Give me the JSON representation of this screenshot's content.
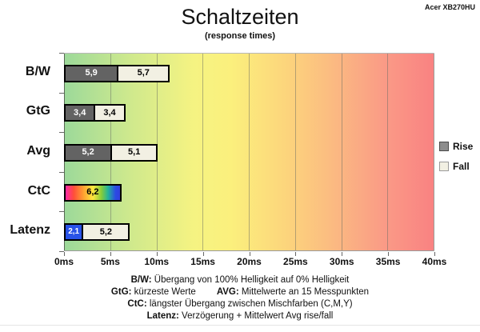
{
  "header": {
    "title": "Schaltzeiten",
    "subtitle": "(response times)",
    "device": "Acer XB270HU"
  },
  "chart_data": {
    "type": "bar",
    "orientation": "horizontal",
    "title": "Schaltzeiten",
    "subtitle": "(response times)",
    "unit": "ms",
    "xlim": [
      0,
      40
    ],
    "x_ticks": [
      "0ms",
      "5ms",
      "10ms",
      "15ms",
      "20ms",
      "25ms",
      "30ms",
      "35ms",
      "40ms"
    ],
    "grid": true,
    "legend_position": "right",
    "categories": [
      "B/W",
      "GtG",
      "Avg",
      "CtC",
      "Latenz"
    ],
    "rows": [
      {
        "label": "B/W",
        "segments": [
          {
            "label": "5,9",
            "ms": 5.9,
            "style": "rise"
          },
          {
            "label": "5,7",
            "ms": 5.7,
            "style": "fall"
          }
        ]
      },
      {
        "label": "GtG",
        "segments": [
          {
            "label": "3,4",
            "ms": 3.4,
            "style": "rise"
          },
          {
            "label": "3,4",
            "ms": 3.4,
            "style": "fall"
          }
        ]
      },
      {
        "label": "Avg",
        "segments": [
          {
            "label": "5,2",
            "ms": 5.2,
            "style": "rise"
          },
          {
            "label": "5,1",
            "ms": 5.1,
            "style": "fall"
          }
        ]
      },
      {
        "label": "CtC",
        "segments": [
          {
            "label": "6,2",
            "ms": 6.2,
            "style": "rainbow"
          }
        ]
      },
      {
        "label": "Latenz",
        "segments": [
          {
            "label": "2,1",
            "ms": 2.1,
            "style": "delay"
          },
          {
            "label": "5,2",
            "ms": 5.2,
            "style": "fall"
          }
        ]
      }
    ],
    "legend": [
      {
        "label": "Rise",
        "style": "rise"
      },
      {
        "label": "Fall",
        "style": "fall"
      }
    ],
    "colors": {
      "rise": "#636363",
      "fall": "#f2f0e3",
      "delay": "#2953e8",
      "segment_border": "#000000",
      "value_text_on_dark": "#ffffff",
      "value_text_on_light": "#000000",
      "plot_gradient": [
        {
          "c": "#9cd99a",
          "p": 0
        },
        {
          "c": "#cfe98d",
          "p": 18
        },
        {
          "c": "#f5f382",
          "p": 35
        },
        {
          "c": "#fbf07d",
          "p": 45
        },
        {
          "c": "#fcd57c",
          "p": 60
        },
        {
          "c": "#fbbc81",
          "p": 72
        },
        {
          "c": "#fa9a86",
          "p": 87
        },
        {
          "c": "#f98282",
          "p": 100
        }
      ],
      "ctc_gradient": [
        {
          "c": "#ff28a8",
          "p": 0
        },
        {
          "c": "#ff4f39",
          "p": 15
        },
        {
          "c": "#ff9d31",
          "p": 32
        },
        {
          "c": "#ffe83e",
          "p": 50
        },
        {
          "c": "#86cc3a",
          "p": 66
        },
        {
          "c": "#23b39b",
          "p": 78
        },
        {
          "c": "#2b49e4",
          "p": 92
        },
        {
          "c": "#3340dd",
          "p": 100
        }
      ]
    }
  },
  "footnotes": [
    {
      "parts": [
        {
          "text": "B/W:",
          "bold": true
        },
        {
          "text": " Übergang von 100% Helligkeit auf 0% Helligkeit",
          "bold": false
        }
      ]
    },
    {
      "parts": [
        {
          "text": "GtG:",
          "bold": true
        },
        {
          "text": " kürzeste Werte",
          "bold": false
        },
        {
          "text": "AVG:",
          "bold": true,
          "gap_before": true
        },
        {
          "text": " Mittelwerte an 15 Messpunkten",
          "bold": false
        }
      ]
    },
    {
      "parts": [
        {
          "text": "CtC:",
          "bold": true
        },
        {
          "text": " längster Übergang zwischen Mischfarben (C,M,Y)",
          "bold": false
        }
      ]
    },
    {
      "parts": [
        {
          "text": "Latenz:",
          "bold": true
        },
        {
          "text": " Verzögerung + Mittelwert Avg rise/fall",
          "bold": false
        }
      ]
    }
  ]
}
